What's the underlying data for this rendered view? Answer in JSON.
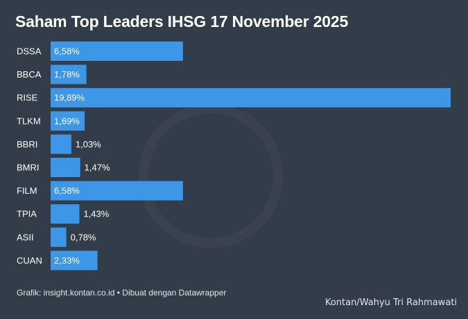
{
  "chart_data": {
    "type": "bar",
    "orientation": "horizontal",
    "title": "Saham Top Leaders IHSG 17 November 2025",
    "categories": [
      "DSSA",
      "BBCA",
      "RISE",
      "TLKM",
      "BBRI",
      "BMRI",
      "FILM",
      "TPIA",
      "ASII",
      "CUAN"
    ],
    "values": [
      6.58,
      1.78,
      19.89,
      1.69,
      1.03,
      1.47,
      6.58,
      1.43,
      0.78,
      2.33
    ],
    "value_labels": [
      "6,58%",
      "1,78%",
      "19,89%",
      "1,69%",
      "1,03%",
      "1,47%",
      "6,58%",
      "1,43%",
      "0,78%",
      "2,33%"
    ],
    "unit": "%",
    "xlim": [
      0,
      19.89
    ],
    "grid": false,
    "bar_color": "#3d97e6"
  },
  "footer": {
    "source": "Grafik: insight.kontan.co.id • Dibuat dengan Datawrapper",
    "credit": "Kontan/Wahyu Tri Rahmawati"
  },
  "colors": {
    "background": "#333c49",
    "bar": "#3d97e6",
    "text": "#ffffff"
  }
}
